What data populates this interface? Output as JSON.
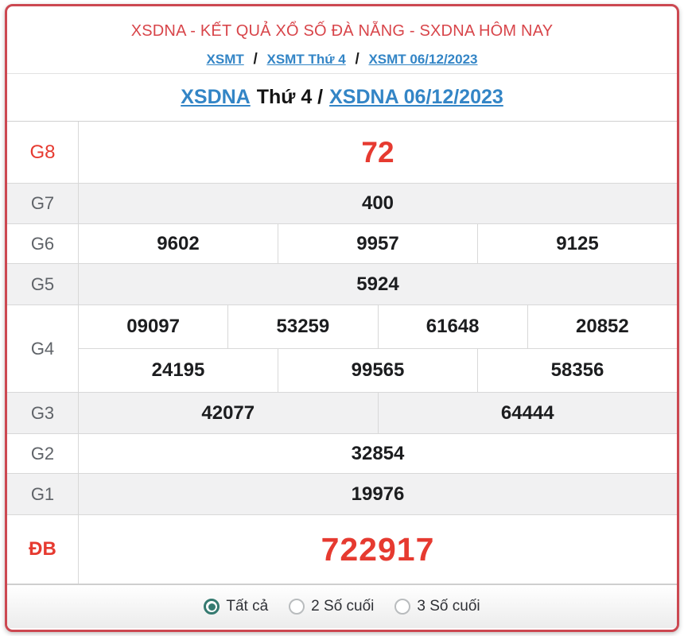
{
  "header": {
    "title": "XSDNA - KẾT QUẢ XỔ SỐ ĐÀ NẴNG - SXDNA HÔM NAY",
    "separator": "/",
    "breadcrumb": [
      {
        "label": "XSMT"
      },
      {
        "label": "XSMT Thứ 4"
      },
      {
        "label": "XSMT 06/12/2023"
      }
    ]
  },
  "subheader": {
    "link1": "XSDNA",
    "middle": "Thứ 4 /",
    "link2": "XSDNA 06/12/2023"
  },
  "results": {
    "rows": [
      {
        "label": "G8",
        "values": [
          "72"
        ]
      },
      {
        "label": "G7",
        "values": [
          "400"
        ]
      },
      {
        "label": "G6",
        "values": [
          "9602",
          "9957",
          "9125"
        ]
      },
      {
        "label": "G5",
        "values": [
          "5924"
        ]
      },
      {
        "label": "G4",
        "row1": [
          "09097",
          "53259",
          "61648",
          "20852"
        ],
        "row2": [
          "24195",
          "99565",
          "58356"
        ]
      },
      {
        "label": "G3",
        "values": [
          "42077",
          "64444"
        ]
      },
      {
        "label": "G2",
        "values": [
          "32854"
        ]
      },
      {
        "label": "G1",
        "values": [
          "19976"
        ]
      },
      {
        "label": "ĐB",
        "values": [
          "722917"
        ]
      }
    ]
  },
  "footer": {
    "options": [
      {
        "label": "Tất cả",
        "selected": true
      },
      {
        "label": "2 Số cuối",
        "selected": false
      },
      {
        "label": "3 Số cuối",
        "selected": false
      }
    ]
  },
  "colors": {
    "card_border_red": "#cc4851",
    "title_red": "#d8454a",
    "value_red": "#e63a30",
    "link_blue": "#3385c6",
    "radio_teal": "#357a70",
    "row_gray": "#f1f1f2"
  }
}
